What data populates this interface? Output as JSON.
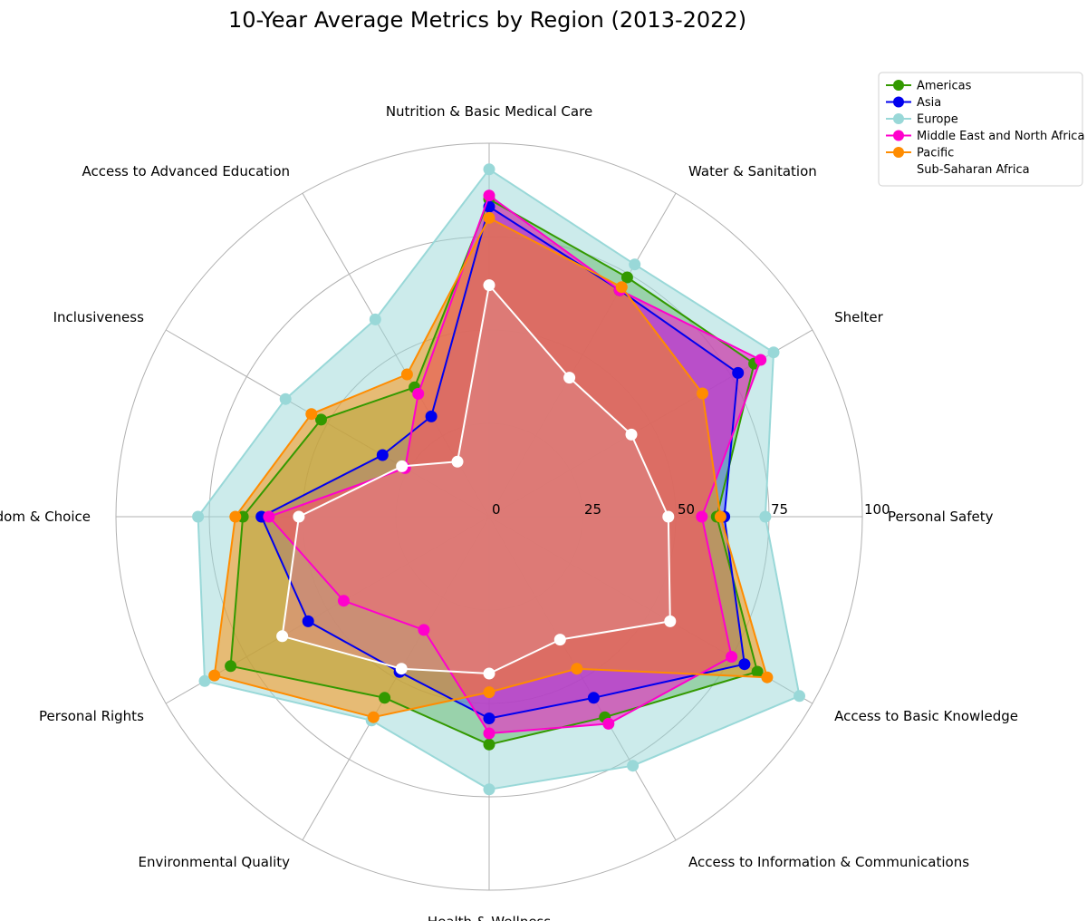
{
  "chart_data": {
    "type": "radar",
    "title": "10-Year Average Metrics by Region (2013-2022)",
    "categories": [
      "Personal Safety",
      "Shelter",
      "Water & Sanitation",
      "Nutrition & Basic Medical Care",
      "Access to Advanced Education",
      "Inclusiveness",
      "Personal Freedom & Choice",
      "Personal Rights",
      "Environmental Quality",
      "Health & Wellness",
      "Access to Information & Communications",
      "Access to Basic Knowledge"
    ],
    "rlim": [
      0,
      100
    ],
    "rticks": [
      0,
      25,
      50,
      75,
      100
    ],
    "rtick_labels": [
      "0",
      "25",
      "50",
      "75",
      "100"
    ],
    "legend_position": "upper-right",
    "series": [
      {
        "name": "Americas",
        "color": "#339900",
        "fill": "#339900",
        "values": [
          61,
          82,
          74,
          85,
          40,
          52,
          66,
          80,
          56,
          61,
          62,
          83
        ]
      },
      {
        "name": "Asia",
        "color": "#0000ee",
        "fill": "#0000ee",
        "values": [
          63,
          77,
          70,
          83,
          31,
          33,
          61,
          56,
          48,
          54,
          56,
          79
        ]
      },
      {
        "name": "Europe",
        "color": "#99d8d8",
        "fill": "#99d8d8",
        "values": [
          74,
          88,
          78,
          93,
          61,
          63,
          78,
          88,
          63,
          73,
          77,
          96
        ]
      },
      {
        "name": "Middle East and North Africa",
        "color": "#ff00cc",
        "fill": "#ff00cc",
        "values": [
          57,
          84,
          70,
          86,
          38,
          26,
          59,
          45,
          35,
          58,
          64,
          75
        ]
      },
      {
        "name": "Pacific",
        "color": "#ff8c00",
        "fill": "#ff8c00",
        "values": [
          62,
          66,
          71,
          80,
          44,
          55,
          68,
          85,
          62,
          47,
          47,
          86
        ]
      },
      {
        "name": "Sub-Saharan Africa",
        "color": "#ffffff",
        "fill": "#dd8888",
        "values": [
          48,
          44,
          43,
          62,
          17,
          27,
          51,
          64,
          47,
          42,
          38,
          56
        ]
      }
    ]
  }
}
